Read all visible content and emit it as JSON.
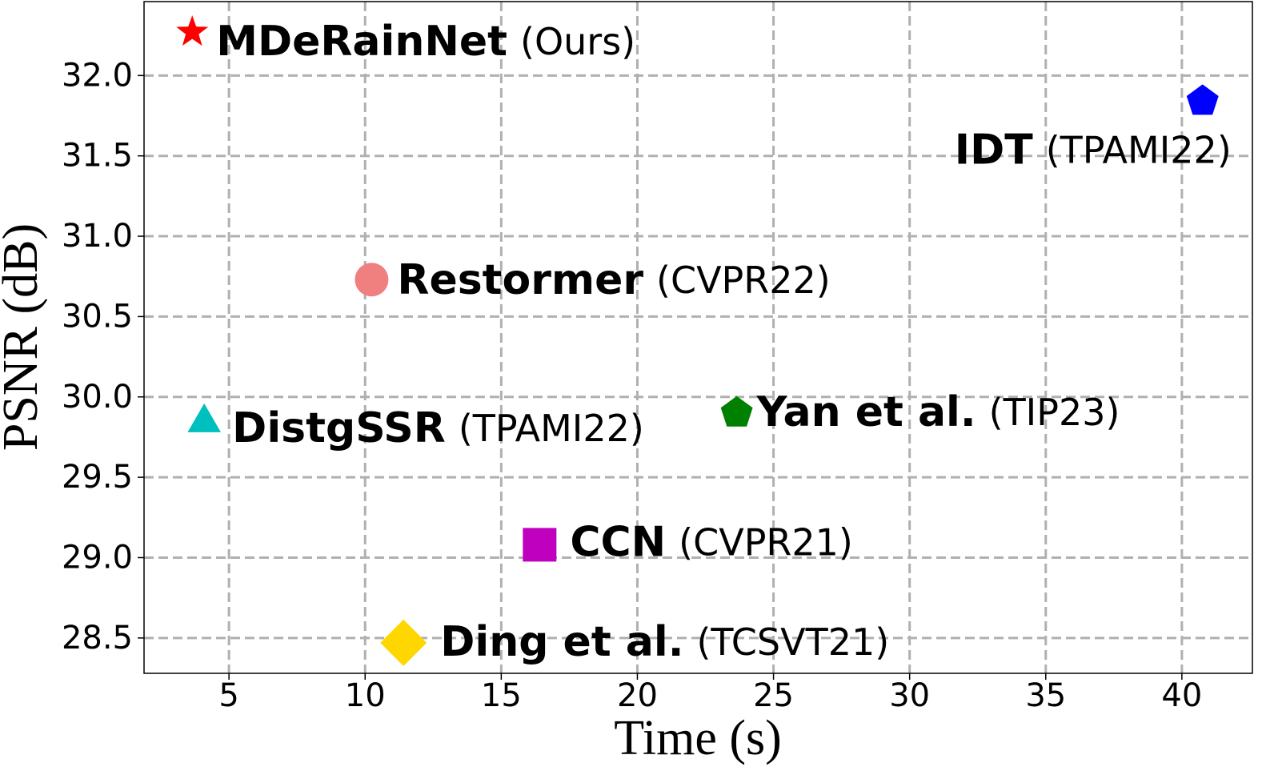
{
  "chart_data": {
    "type": "scatter",
    "x_label": "Time (s)",
    "y_label": "PSNR (dB)",
    "xlim": [
      1.88,
      42.59
    ],
    "ylim": [
      28.28,
      32.46
    ],
    "xticks": [
      5,
      10,
      15,
      20,
      25,
      30,
      35,
      40
    ],
    "yticks": [
      {
        "value": 28.5,
        "label": "28.5"
      },
      {
        "value": 29.0,
        "label": "29.0"
      },
      {
        "value": 29.5,
        "label": "29.5"
      },
      {
        "value": 30.0,
        "label": "30.0"
      },
      {
        "value": 30.5,
        "label": "30.5"
      },
      {
        "value": 31.0,
        "label": "31.0"
      },
      {
        "value": 31.5,
        "label": "31.5"
      },
      {
        "value": 32.0,
        "label": "32.0"
      }
    ],
    "grid": true,
    "series": [
      {
        "name": "MDeRainNet",
        "venue": "(Ours)",
        "color": "#ff0000",
        "marker": "star",
        "x": [
          3.65
        ],
        "values": [
          32.27
        ]
      },
      {
        "name": "IDT",
        "venue": "(TPAMI22)",
        "color": "#0000ff",
        "marker": "pentagon",
        "x": [
          40.76
        ],
        "values": [
          31.84
        ]
      },
      {
        "name": "Restormer",
        "venue": "(CVPR22)",
        "color": "#f08080",
        "marker": "circle",
        "x": [
          10.24
        ],
        "values": [
          30.73
        ]
      },
      {
        "name": "DistgSSR",
        "venue": "(TPAMI22)",
        "color": "#00bfbf",
        "marker": "triangle",
        "x": [
          4.09
        ],
        "values": [
          29.84
        ]
      },
      {
        "name": "Yan et al.",
        "venue": "(TIP23)",
        "color": "#008000",
        "marker": "pentagon",
        "x": [
          23.65
        ],
        "values": [
          29.9
        ]
      },
      {
        "name": "CCN",
        "venue": "(CVPR21)",
        "color": "#bf00bf",
        "marker": "square",
        "x": [
          16.41
        ],
        "values": [
          29.08
        ]
      },
      {
        "name": "Ding et al.",
        "venue": "(TCSVT21)",
        "color": "#ffd700",
        "marker": "diamond",
        "x": [
          11.41
        ],
        "values": [
          28.47
        ]
      }
    ]
  }
}
